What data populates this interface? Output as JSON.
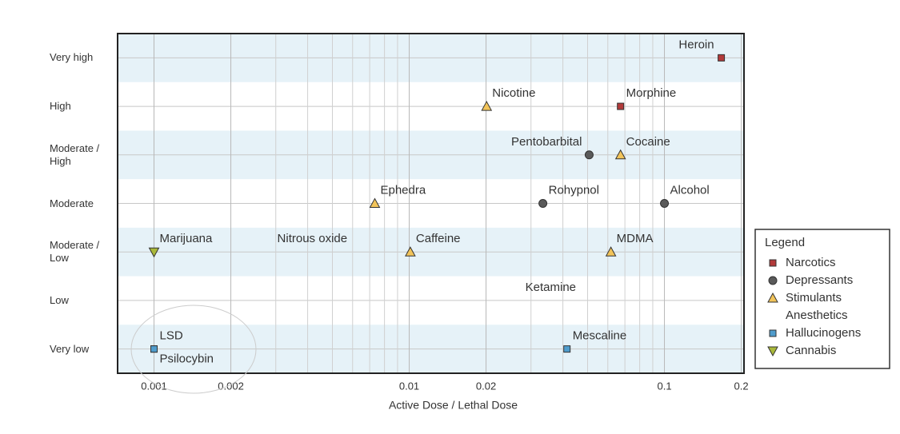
{
  "chart_data": {
    "type": "scatter",
    "xlabel": "Active Dose / Lethal Dose",
    "xscale": "log",
    "xlim": [
      0.00072,
      0.205
    ],
    "xticks": [
      0.001,
      0.002,
      0.01,
      0.02,
      0.1,
      0.2
    ],
    "xminorticks": [
      0.003,
      0.004,
      0.005,
      0.006,
      0.007,
      0.008,
      0.009,
      0.03,
      0.04,
      0.05,
      0.06,
      0.07,
      0.08,
      0.09
    ],
    "ylim": [
      -0.5,
      6.5
    ],
    "yticks": [
      {
        "value": 0,
        "label": "Very low"
      },
      {
        "value": 1,
        "label": "Low"
      },
      {
        "value": 2,
        "label": "Moderate / Low"
      },
      {
        "value": 3,
        "label": "Moderate"
      },
      {
        "value": 4,
        "label": "Moderate / High"
      },
      {
        "value": 5,
        "label": "High"
      },
      {
        "value": 6,
        "label": "Very high"
      }
    ],
    "grid": true,
    "bands": true,
    "legend_title": "Legend",
    "legend": "right",
    "series": [
      {
        "name": "Narcotics",
        "color": "#b23a3a",
        "marker": "square",
        "points": [
          {
            "label": "Heroin",
            "x": 0.167,
            "y": 6
          },
          {
            "label": "Morphine",
            "x": 0.0673,
            "y": 5
          }
        ]
      },
      {
        "name": "Depressants",
        "color": "#5a5a5a",
        "marker": "circle",
        "points": [
          {
            "label": "Pentobarbital",
            "x": 0.0507,
            "y": 4
          },
          {
            "label": "Rohypnol",
            "x": 0.0334,
            "y": 3
          },
          {
            "label": "Alcohol",
            "x": 0.1,
            "y": 3
          }
        ]
      },
      {
        "name": "Stimulants",
        "color": "#f2c45a",
        "marker": "triangle",
        "points": [
          {
            "label": "Nicotine",
            "x": 0.0201,
            "y": 5
          },
          {
            "label": "Cocaine",
            "x": 0.0673,
            "y": 4
          },
          {
            "label": "Ephedra",
            "x": 0.00733,
            "y": 3
          },
          {
            "label": "Caffeine",
            "x": 0.0101,
            "y": 2
          },
          {
            "label": "MDMA",
            "x": 0.0617,
            "y": 2
          }
        ]
      },
      {
        "name": "Anesthetics",
        "color": "#333333",
        "marker": "none",
        "points": [
          {
            "label": "Nitrous oxide",
            "x": 0.00289,
            "y": 2
          },
          {
            "label": "Ketamine",
            "x": 0.0271,
            "y": 1
          }
        ]
      },
      {
        "name": "Hallucinogens",
        "color": "#4f9ccc",
        "marker": "square",
        "points": [
          {
            "label": "LSD",
            "x": 0.001,
            "y": 0
          },
          {
            "label": "Psilocybin",
            "x": 0.001,
            "y": 0
          },
          {
            "label": "Mescaline",
            "x": 0.0415,
            "y": 0
          }
        ]
      },
      {
        "name": "Cannabis",
        "color": "#a9b83a",
        "marker": "triangle-down",
        "points": [
          {
            "label": "Marijuana",
            "x": 0.001,
            "y": 2
          }
        ]
      }
    ]
  }
}
